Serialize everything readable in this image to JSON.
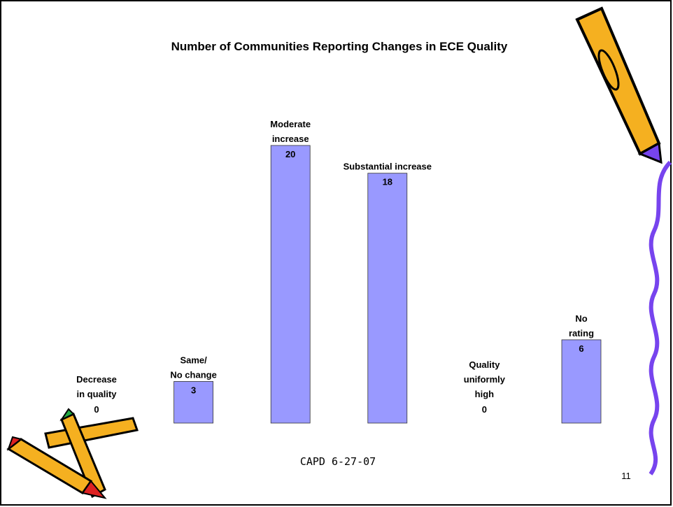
{
  "chart_data": {
    "type": "bar",
    "title": "Number of Communities Reporting Changes in ECE Quality",
    "categories": [
      "Decrease\nin quality",
      "Same/\nNo change",
      "Moderate\nincrease",
      "Substantial increase",
      "Quality\nuniformly\nhigh",
      "No\nrating"
    ],
    "values": [
      0,
      3,
      20,
      18,
      0,
      6
    ],
    "color": "#9999ff"
  },
  "footer": "CAPD 6-27-07",
  "page_number": "11"
}
